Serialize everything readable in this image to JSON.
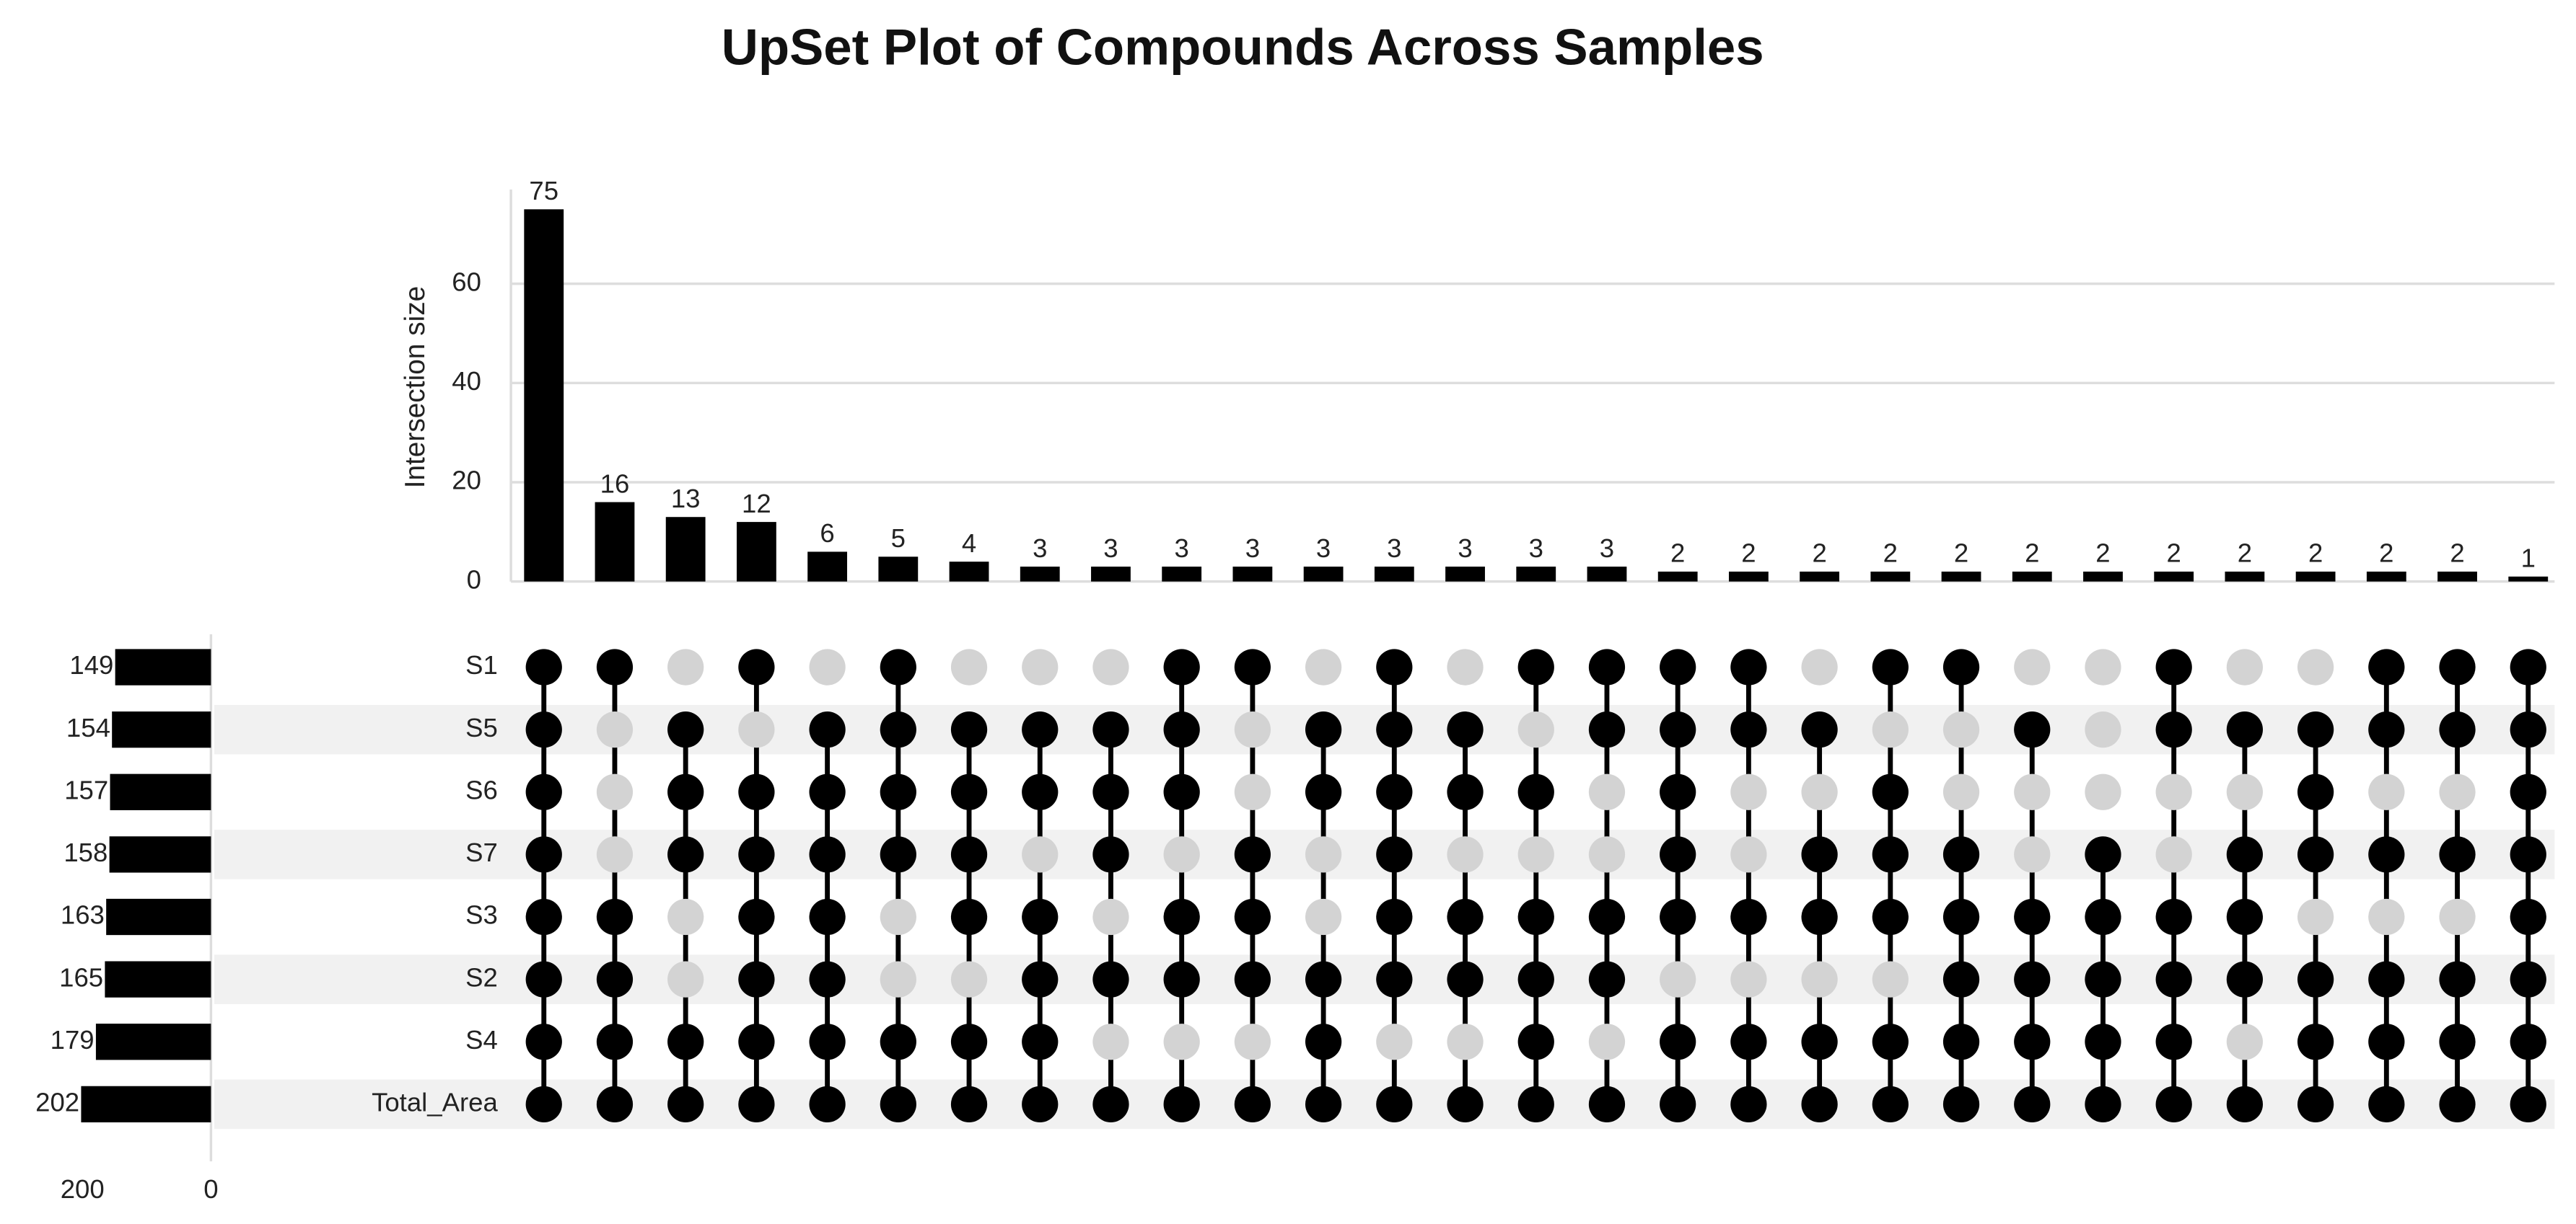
{
  "chart_data": {
    "type": "upset",
    "title": "UpSet Plot of Compounds Across Samples",
    "ylabel": "Intersection size",
    "values": [
      75,
      16,
      13,
      12,
      6,
      5,
      4,
      3,
      3,
      3,
      3,
      3,
      3,
      3,
      3,
      3,
      2,
      2,
      2,
      2,
      2,
      2,
      2,
      2,
      2,
      2,
      2,
      2,
      1
    ],
    "ylim": [
      0,
      79
    ],
    "yticks": [
      0,
      20,
      40,
      60
    ],
    "grid": true,
    "color": "#000000",
    "inactive_color": "#d3d3d3",
    "band_color": "#f1f1f1",
    "sets": [
      {
        "name": "S1",
        "size": 149
      },
      {
        "name": "S5",
        "size": 154
      },
      {
        "name": "S6",
        "size": 157
      },
      {
        "name": "S7",
        "size": 158
      },
      {
        "name": "S3",
        "size": 163
      },
      {
        "name": "S2",
        "size": 165
      },
      {
        "name": "S4",
        "size": 179
      },
      {
        "name": "Total_Area",
        "size": 202
      }
    ],
    "set_size_xlim": [
      0,
      200
    ],
    "set_size_xticks": [
      200,
      0
    ],
    "membership": [
      [
        1,
        1,
        1,
        1,
        1,
        1,
        1,
        1
      ],
      [
        1,
        0,
        0,
        0,
        1,
        1,
        1,
        1
      ],
      [
        0,
        1,
        1,
        1,
        0,
        0,
        1,
        1
      ],
      [
        1,
        0,
        1,
        1,
        1,
        1,
        1,
        1
      ],
      [
        0,
        1,
        1,
        1,
        1,
        1,
        1,
        1
      ],
      [
        1,
        1,
        1,
        1,
        0,
        0,
        1,
        1
      ],
      [
        0,
        1,
        1,
        1,
        1,
        0,
        1,
        1
      ],
      [
        0,
        1,
        1,
        0,
        1,
        1,
        1,
        1
      ],
      [
        0,
        1,
        1,
        1,
        0,
        1,
        0,
        1
      ],
      [
        1,
        1,
        1,
        0,
        1,
        1,
        0,
        1
      ],
      [
        1,
        0,
        0,
        1,
        1,
        1,
        0,
        1
      ],
      [
        0,
        1,
        1,
        0,
        0,
        1,
        1,
        1
      ],
      [
        1,
        1,
        1,
        1,
        1,
        1,
        0,
        1
      ],
      [
        0,
        1,
        1,
        0,
        1,
        1,
        0,
        1
      ],
      [
        1,
        0,
        1,
        0,
        1,
        1,
        1,
        1
      ],
      [
        1,
        1,
        0,
        0,
        1,
        1,
        0,
        1
      ],
      [
        1,
        1,
        1,
        1,
        1,
        0,
        1,
        1
      ],
      [
        1,
        1,
        0,
        0,
        1,
        0,
        1,
        1
      ],
      [
        0,
        1,
        0,
        1,
        1,
        0,
        1,
        1
      ],
      [
        1,
        0,
        1,
        1,
        1,
        0,
        1,
        1
      ],
      [
        1,
        0,
        0,
        1,
        1,
        1,
        1,
        1
      ],
      [
        0,
        1,
        0,
        0,
        1,
        1,
        1,
        1
      ],
      [
        0,
        0,
        0,
        1,
        1,
        1,
        1,
        1
      ],
      [
        1,
        1,
        0,
        0,
        1,
        1,
        1,
        1
      ],
      [
        0,
        1,
        0,
        1,
        1,
        1,
        0,
        1
      ],
      [
        0,
        1,
        1,
        1,
        0,
        1,
        1,
        1
      ],
      [
        1,
        1,
        0,
        1,
        0,
        1,
        1,
        1
      ],
      [
        1,
        1,
        0,
        1,
        0,
        1,
        1,
        1
      ],
      [
        1,
        1,
        1,
        1,
        1,
        1,
        1,
        1
      ]
    ]
  }
}
